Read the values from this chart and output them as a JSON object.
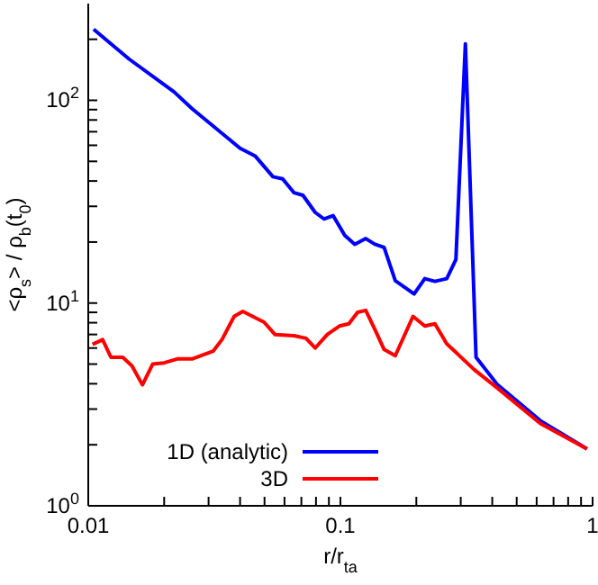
{
  "chart_data": {
    "type": "line",
    "xlabel": "r/r$_{ta}$",
    "ylabel": "<ρ$_{s}$> / ρ$_{b}$(t$_{0}$)",
    "log": "xy",
    "legend": "bottom left",
    "marker": "none",
    "line_style": "solid",
    "grid": false,
    "xlim": [
      0.01,
      1
    ],
    "ylim": [
      1,
      300
    ],
    "xticks": [
      0.01,
      {
        "value": 0.02,
        "label": null
      },
      {
        "value": 0.03,
        "label": null
      },
      {
        "value": 0.04,
        "label": null
      },
      {
        "value": 0.05,
        "label": null
      },
      {
        "value": 0.06,
        "label": null
      },
      {
        "value": 0.07,
        "label": null
      },
      {
        "value": 0.08,
        "label": null
      },
      {
        "value": 0.09,
        "label": null
      },
      0.1,
      {
        "value": 0.2,
        "label": null
      },
      {
        "value": 0.3,
        "label": null
      },
      {
        "value": 0.4,
        "label": null
      },
      {
        "value": 0.5,
        "label": null
      },
      {
        "value": 0.6,
        "label": null
      },
      {
        "value": 0.7,
        "label": null
      },
      {
        "value": 0.8,
        "label": null
      },
      {
        "value": 0.9,
        "label": null
      },
      1
    ],
    "yticks": [
      {
        "value": 1,
        "label": "10$^{0}$"
      },
      {
        "value": 2,
        "label": null
      },
      {
        "value": 3,
        "label": null
      },
      {
        "value": 4,
        "label": null
      },
      {
        "value": 5,
        "label": null
      },
      {
        "value": 6,
        "label": null
      },
      {
        "value": 7,
        "label": null
      },
      {
        "value": 8,
        "label": null
      },
      {
        "value": 9,
        "label": null
      },
      {
        "value": 10,
        "label": "10$^{1}$"
      },
      {
        "value": 20,
        "label": null
      },
      {
        "value": 30,
        "label": null
      },
      {
        "value": 40,
        "label": null
      },
      {
        "value": 50,
        "label": null
      },
      {
        "value": 60,
        "label": null
      },
      {
        "value": 70,
        "label": null
      },
      {
        "value": 80,
        "label": null
      },
      {
        "value": 90,
        "label": null
      },
      {
        "value": 100,
        "label": "10$^{2}$"
      },
      {
        "value": 200,
        "label": null
      }
    ],
    "series": [
      {
        "name": "1D (analytic)",
        "color": "#0000ff",
        "x": [
          0.0105,
          0.0145,
          0.0219,
          0.0258,
          0.04,
          0.046,
          0.054,
          0.059,
          0.0655,
          0.071,
          0.0794,
          0.086,
          0.0935,
          0.104,
          0.114,
          0.126,
          0.137,
          0.149,
          0.165,
          0.196,
          0.216,
          0.237,
          0.264,
          0.287,
          0.313,
          0.345,
          0.42,
          0.62,
          0.95
        ],
        "values": [
          224,
          160,
          110,
          91,
          58,
          53,
          42,
          41,
          35,
          34,
          28,
          26,
          27,
          21.6,
          19.5,
          20.8,
          19.5,
          18.8,
          12.9,
          11.1,
          13.2,
          12.8,
          13.2,
          16.4,
          190,
          5.4,
          3.95,
          2.63,
          1.91
        ]
      },
      {
        "name": "3D",
        "color": "#ff0000",
        "x": [
          0.0104,
          0.0114,
          0.0123,
          0.0137,
          0.0149,
          0.0164,
          0.018,
          0.02,
          0.0225,
          0.0258,
          0.0313,
          0.0339,
          0.0379,
          0.041,
          0.0498,
          0.055,
          0.0655,
          0.073,
          0.0794,
          0.0887,
          0.099,
          0.108,
          0.117,
          0.126,
          0.137,
          0.149,
          0.165,
          0.194,
          0.216,
          0.237,
          0.264,
          0.339,
          0.42,
          0.62,
          0.95
        ],
        "values": [
          6.26,
          6.6,
          5.4,
          5.4,
          4.9,
          3.95,
          5.0,
          5.07,
          5.3,
          5.3,
          5.8,
          6.6,
          8.6,
          9.1,
          8.05,
          7.0,
          6.9,
          6.7,
          6.0,
          7.0,
          7.7,
          7.9,
          9.0,
          9.2,
          7.4,
          5.9,
          5.5,
          8.6,
          7.7,
          7.9,
          6.3,
          4.7,
          3.8,
          2.55,
          1.91
        ]
      }
    ]
  }
}
